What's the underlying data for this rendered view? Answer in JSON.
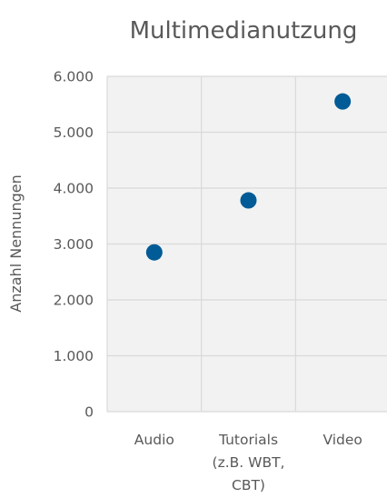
{
  "chart_data": {
    "type": "scatter",
    "title": "Multimedianutzung",
    "xlabel": "",
    "ylabel": "Anzahl Nennungen",
    "categories": [
      [
        "Audio"
      ],
      [
        "Tutorials",
        "(z.B. WBT,",
        "CBT)"
      ],
      [
        "Video"
      ]
    ],
    "values": [
      2850,
      3780,
      5550
    ],
    "ylim": [
      0,
      6000
    ],
    "yticks": [
      0,
      1000,
      2000,
      3000,
      4000,
      5000,
      6000
    ],
    "ytick_labels": [
      "0",
      "1.000",
      "2.000",
      "3.000",
      "4.000",
      "5.000",
      "6.000"
    ],
    "grid": true,
    "legend": false,
    "colors": {
      "marker": "#005b96",
      "plot_background": "#f2f2f2",
      "gridline": "#d9d9d9",
      "text": "#595959"
    }
  }
}
